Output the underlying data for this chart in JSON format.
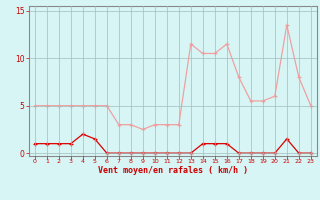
{
  "x": [
    0,
    1,
    2,
    3,
    4,
    5,
    6,
    7,
    8,
    9,
    10,
    11,
    12,
    13,
    14,
    15,
    16,
    17,
    18,
    19,
    20,
    21,
    22,
    23
  ],
  "rafales": [
    5,
    5,
    5,
    5,
    5,
    5,
    5,
    3,
    3,
    2.5,
    3,
    3,
    3,
    11.5,
    10.5,
    10.5,
    11.5,
    8,
    5.5,
    5.5,
    6,
    13.5,
    8,
    5
  ],
  "moyen": [
    1,
    1,
    1,
    1,
    2,
    1.5,
    0,
    0,
    0,
    0,
    0,
    0,
    0,
    0,
    1,
    1,
    1,
    0,
    0,
    0,
    0,
    1.5,
    0,
    0
  ],
  "bg_color": "#d8f5f5",
  "grid_color": "#a0bebe",
  "line_color_rafales": "#f0a0a0",
  "line_color_moyen": "#dd0000",
  "marker_color_rafales": "#f0a0a0",
  "marker_color_moyen": "#dd0000",
  "xlabel": "Vent moyen/en rafales ( km/h )",
  "xlabel_color": "#cc0000",
  "tick_color": "#cc0000",
  "spine_color": "#888888",
  "yticks": [
    0,
    5,
    10,
    15
  ],
  "ylim": [
    -0.3,
    15.5
  ],
  "xlim": [
    -0.5,
    23.5
  ]
}
